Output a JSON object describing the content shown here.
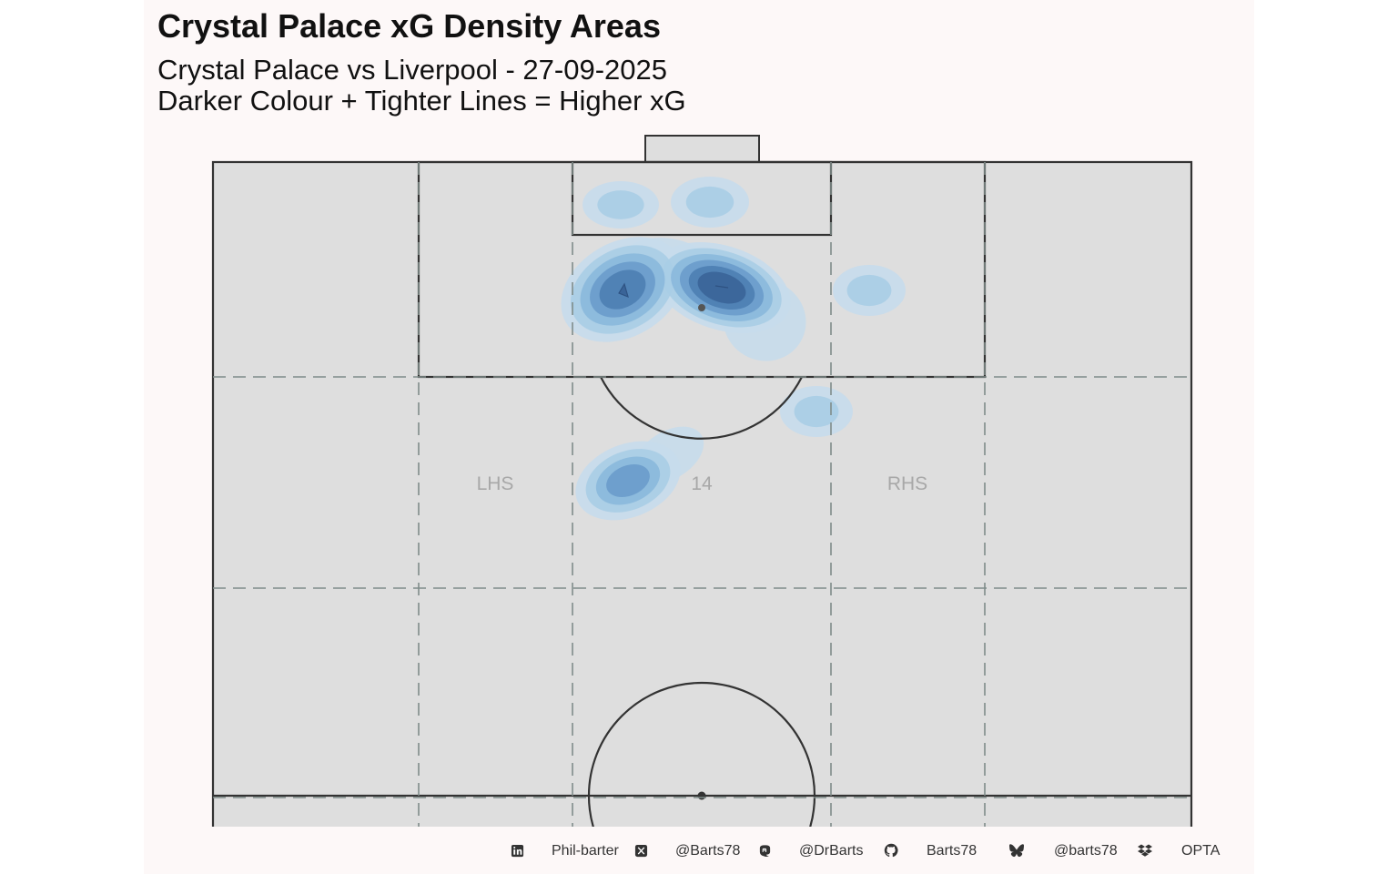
{
  "title": "Crystal Palace xG Density Areas",
  "subtitle_line1": "Crystal Palace vs Liverpool - 27-09-2025",
  "subtitle_line2": "Darker Colour + Tighter Lines = Higher xG",
  "zones": {
    "left": "LHS",
    "centre": "14",
    "right": "RHS"
  },
  "colors": {
    "pitch": "#dedede",
    "lines": "#333333",
    "zone_lines": "#7f8c8a",
    "density": [
      "#c6dcec",
      "#a9cde6",
      "#8ab8db",
      "#6a9ccb",
      "#4d7eb2",
      "#3a6498"
    ]
  },
  "chart_data": {
    "type": "heatmap",
    "title": "Crystal Palace xG Density Areas",
    "subtitle": "Crystal Palace vs Liverpool - 27-09-2025 / Darker Colour + Tighter Lines = Higher xG",
    "density_hotspots": [
      {
        "area": "six-yard box, left",
        "level": 2
      },
      {
        "area": "six-yard box, centre",
        "level": 2
      },
      {
        "area": "penalty area, left of spot",
        "level": 5
      },
      {
        "area": "penalty area, near spot",
        "level": 6
      },
      {
        "area": "right of penalty area",
        "level": 2
      },
      {
        "area": "right of D",
        "level": 2
      },
      {
        "area": "zone 14, left",
        "level": 4
      }
    ],
    "density_levels": 6,
    "legend": "none"
  },
  "caption": {
    "items": [
      {
        "icon": "linkedin-icon",
        "label": "Phil-barter"
      },
      {
        "icon": "x-twitter-icon",
        "label": "@Barts78"
      },
      {
        "icon": "mastodon-icon",
        "label": "@DrBarts"
      },
      {
        "icon": "github-icon",
        "label": "Barts78"
      },
      {
        "icon": "bluesky-icon",
        "label": "@barts78"
      },
      {
        "icon": "dropbox-icon",
        "label": "OPTA"
      }
    ]
  }
}
